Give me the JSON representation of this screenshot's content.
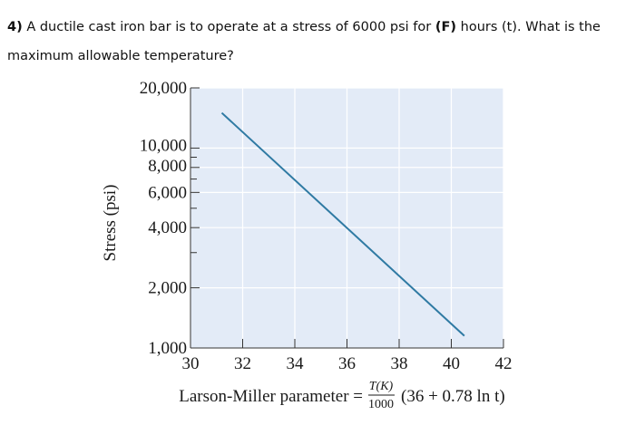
{
  "question": {
    "number": "4)",
    "part1": " A ductile cast iron bar is to operate at a stress of 6000 psi for ",
    "var_f": "(F)",
    "part2": " hours (t). What is the maximum allowable temperature?"
  },
  "chart_data": {
    "type": "line",
    "title": "",
    "xlabel_prefix": "Larson-Miller parameter =",
    "xlabel_frac_num": "T(K)",
    "xlabel_frac_den": "1000",
    "xlabel_suffix": "(36 + 0.78 ln t)",
    "ylabel": "Stress (psi)",
    "xlim": [
      30,
      42
    ],
    "ylim": [
      1000,
      20000
    ],
    "yscale": "log",
    "x_ticks": [
      30,
      32,
      34,
      36,
      38,
      40,
      42
    ],
    "x_tick_labels": [
      "30",
      "32",
      "34",
      "36",
      "38",
      "40",
      "42"
    ],
    "y_major_ticks": [
      1000,
      2000,
      4000,
      6000,
      8000,
      10000,
      20000
    ],
    "y_tick_labels": [
      "1,000",
      "2,000",
      "4,000",
      "6,000",
      "8,000",
      "10,000",
      "20,000"
    ],
    "y_minor_ticks": [
      3000,
      5000,
      7000,
      9000
    ],
    "grid": true,
    "series": [
      {
        "values_x": [
          31.2,
          40.5
        ],
        "values_y": [
          15000,
          1150
        ]
      }
    ],
    "colors": {
      "line": "#2f7aa3",
      "plot_bg": "#e3ebf7",
      "grid": "#ffffff",
      "axis": "#333333"
    }
  }
}
